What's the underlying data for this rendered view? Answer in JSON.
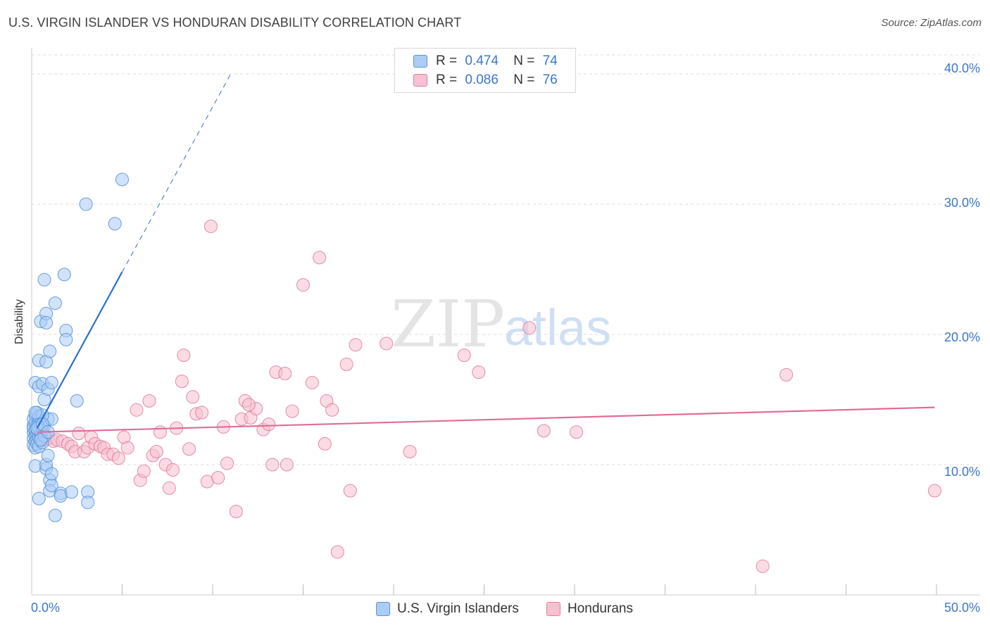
{
  "header": {
    "title": "U.S. VIRGIN ISLANDER VS HONDURAN DISABILITY CORRELATION CHART",
    "source": "Source: ZipAtlas.com"
  },
  "watermark": {
    "zip": "ZIP",
    "atlas": "atlas"
  },
  "legend": {
    "r_label": "R =",
    "n_label": "N =",
    "series": [
      {
        "name": "U.S. Virgin Islanders",
        "r": "0.474",
        "n": "74",
        "fill": "#aaccf5",
        "stroke": "#5b93d8"
      },
      {
        "name": "Hondurans",
        "r": "0.086",
        "n": "76",
        "fill": "#f8c0d0",
        "stroke": "#e07ea0"
      }
    ]
  },
  "colors": {
    "blue_fill": "#aaccf5",
    "blue_stroke": "#5b93d8",
    "blue_line": "#2f6fce",
    "pink_fill": "#f8c0d0",
    "pink_stroke": "#e07ea0",
    "pink_line": "#e36b93",
    "tick_label": "#3a78c9",
    "grid": "#dddddd"
  },
  "chart_data": {
    "type": "scatter",
    "title": "U.S. VIRGIN ISLANDER VS HONDURAN DISABILITY CORRELATION CHART",
    "xlabel": "",
    "ylabel": "Disability",
    "xlim": [
      0,
      50
    ],
    "ylim": [
      0,
      42
    ],
    "x_tick_labels": [
      "0.0%",
      "50.0%"
    ],
    "y_ticks": [
      10,
      20,
      30,
      40
    ],
    "y_tick_labels": [
      "10.0%",
      "20.0%",
      "30.0%",
      "40.0%"
    ],
    "grid": true,
    "legend_position": "top-center",
    "series": [
      {
        "name": "U.S. Virgin Islanders",
        "r": 0.474,
        "n": 74,
        "trend": {
          "x0": 0.3,
          "y0": 12.8,
          "x1": 5.0,
          "y1": 24.8,
          "dash_to_x": 11.0,
          "dash_to_y": 40.0
        },
        "points": [
          [
            0.1,
            12.0
          ],
          [
            0.1,
            12.5
          ],
          [
            0.1,
            13.0
          ],
          [
            0.1,
            13.5
          ],
          [
            0.1,
            11.5
          ],
          [
            0.1,
            12.8
          ],
          [
            0.2,
            12.2
          ],
          [
            0.2,
            11.8
          ],
          [
            0.2,
            13.2
          ],
          [
            0.2,
            12.6
          ],
          [
            0.2,
            11.3
          ],
          [
            0.2,
            13.8
          ],
          [
            0.3,
            12.4
          ],
          [
            0.3,
            13.0
          ],
          [
            0.3,
            11.9
          ],
          [
            0.3,
            12.7
          ],
          [
            0.3,
            11.6
          ],
          [
            0.3,
            14.0
          ],
          [
            0.4,
            12.1
          ],
          [
            0.4,
            13.4
          ],
          [
            0.4,
            12.9
          ],
          [
            0.4,
            11.4
          ],
          [
            0.4,
            13.7
          ],
          [
            0.5,
            12.3
          ],
          [
            0.5,
            12.0
          ],
          [
            0.5,
            13.1
          ],
          [
            0.6,
            11.7
          ],
          [
            0.6,
            12.6
          ],
          [
            0.7,
            13.0
          ],
          [
            0.7,
            12.2
          ],
          [
            0.2,
            16.3
          ],
          [
            0.4,
            16.0
          ],
          [
            0.6,
            16.2
          ],
          [
            0.7,
            15.0
          ],
          [
            0.9,
            15.8
          ],
          [
            1.1,
            16.3
          ],
          [
            0.4,
            18.0
          ],
          [
            0.8,
            17.9
          ],
          [
            1.0,
            18.7
          ],
          [
            0.5,
            21.0
          ],
          [
            0.8,
            21.6
          ],
          [
            0.8,
            20.9
          ],
          [
            1.3,
            22.4
          ],
          [
            1.9,
            20.3
          ],
          [
            1.9,
            19.6
          ],
          [
            0.7,
            24.2
          ],
          [
            1.8,
            24.6
          ],
          [
            3.0,
            30.0
          ],
          [
            4.6,
            28.5
          ],
          [
            5.0,
            31.9
          ],
          [
            0.2,
            9.9
          ],
          [
            0.8,
            9.7
          ],
          [
            0.8,
            10.0
          ],
          [
            0.9,
            10.7
          ],
          [
            1.0,
            8.8
          ],
          [
            1.0,
            8.0
          ],
          [
            1.1,
            8.4
          ],
          [
            1.1,
            9.3
          ],
          [
            1.3,
            6.1
          ],
          [
            1.6,
            7.8
          ],
          [
            1.6,
            7.6
          ],
          [
            2.2,
            7.9
          ],
          [
            3.1,
            7.9
          ],
          [
            3.1,
            7.1
          ],
          [
            0.4,
            7.4
          ],
          [
            2.5,
            14.9
          ],
          [
            0.9,
            13.5
          ],
          [
            1.1,
            13.5
          ],
          [
            0.6,
            13.8
          ],
          [
            0.2,
            14.0
          ],
          [
            0.3,
            12.8
          ],
          [
            0.5,
            11.9
          ],
          [
            0.6,
            13.1
          ],
          [
            0.9,
            12.5
          ]
        ]
      },
      {
        "name": "Hondurans",
        "r": 0.086,
        "n": 76,
        "trend": {
          "x0": 0.3,
          "y0": 12.5,
          "x1": 49.9,
          "y1": 14.4
        },
        "points": [
          [
            0.4,
            12.3
          ],
          [
            0.6,
            11.9
          ],
          [
            0.9,
            12.0
          ],
          [
            1.2,
            11.8
          ],
          [
            1.4,
            11.9
          ],
          [
            1.7,
            11.8
          ],
          [
            2.0,
            11.6
          ],
          [
            2.2,
            11.4
          ],
          [
            2.4,
            11.0
          ],
          [
            2.6,
            12.4
          ],
          [
            2.9,
            11.0
          ],
          [
            3.1,
            11.3
          ],
          [
            3.3,
            12.1
          ],
          [
            3.5,
            11.6
          ],
          [
            3.8,
            11.4
          ],
          [
            4.0,
            11.3
          ],
          [
            4.2,
            10.8
          ],
          [
            4.5,
            10.8
          ],
          [
            4.8,
            10.5
          ],
          [
            5.1,
            12.1
          ],
          [
            5.3,
            11.3
          ],
          [
            5.8,
            14.2
          ],
          [
            6.0,
            8.8
          ],
          [
            6.2,
            9.5
          ],
          [
            6.5,
            14.9
          ],
          [
            6.7,
            10.7
          ],
          [
            6.9,
            11.0
          ],
          [
            7.1,
            12.5
          ],
          [
            7.4,
            10.0
          ],
          [
            7.6,
            8.2
          ],
          [
            7.8,
            9.6
          ],
          [
            8.0,
            12.8
          ],
          [
            8.3,
            16.4
          ],
          [
            8.4,
            18.4
          ],
          [
            8.7,
            11.2
          ],
          [
            8.9,
            15.2
          ],
          [
            9.1,
            13.9
          ],
          [
            9.4,
            14.0
          ],
          [
            9.7,
            8.7
          ],
          [
            9.9,
            28.3
          ],
          [
            10.3,
            9.0
          ],
          [
            10.6,
            12.9
          ],
          [
            10.8,
            10.1
          ],
          [
            11.3,
            6.4
          ],
          [
            11.6,
            13.5
          ],
          [
            11.8,
            14.9
          ],
          [
            12.1,
            13.6
          ],
          [
            12.4,
            14.3
          ],
          [
            12.8,
            12.7
          ],
          [
            13.1,
            13.1
          ],
          [
            13.3,
            10.0
          ],
          [
            13.5,
            17.1
          ],
          [
            14.0,
            17.0
          ],
          [
            14.1,
            10.0
          ],
          [
            14.4,
            14.1
          ],
          [
            15.0,
            23.8
          ],
          [
            15.5,
            16.3
          ],
          [
            15.9,
            25.9
          ],
          [
            16.2,
            11.6
          ],
          [
            16.3,
            14.9
          ],
          [
            16.6,
            14.2
          ],
          [
            16.9,
            3.3
          ],
          [
            17.4,
            17.7
          ],
          [
            17.6,
            8.0
          ],
          [
            17.9,
            19.2
          ],
          [
            19.6,
            19.3
          ],
          [
            20.9,
            11.0
          ],
          [
            23.9,
            18.4
          ],
          [
            24.7,
            17.1
          ],
          [
            27.5,
            20.5
          ],
          [
            28.3,
            12.6
          ],
          [
            30.1,
            12.5
          ],
          [
            40.4,
            2.2
          ],
          [
            41.7,
            16.9
          ],
          [
            49.9,
            8.0
          ],
          [
            12.0,
            14.6
          ]
        ]
      }
    ]
  }
}
